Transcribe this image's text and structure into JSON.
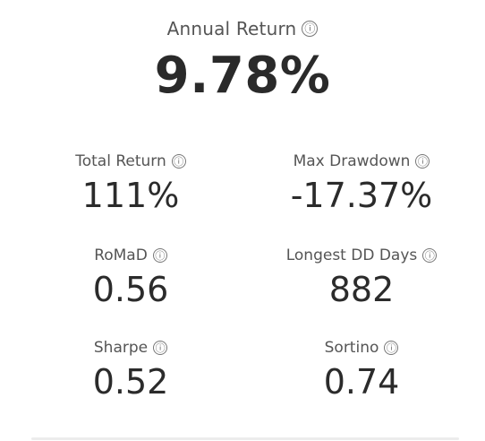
{
  "hero": {
    "label": "Annual Return",
    "value": "9.78%",
    "info_icon": "ⓘ"
  },
  "metrics": [
    {
      "label": "Total Return",
      "value": "111%",
      "info_icon": "ⓘ"
    },
    {
      "label": "Max Drawdown",
      "value": "-17.37%",
      "info_icon": "ⓘ"
    },
    {
      "label": "RoMaD",
      "value": "0.56",
      "info_icon": "ⓘ"
    },
    {
      "label": "Longest DD Days",
      "value": "882",
      "info_icon": "ⓘ"
    },
    {
      "label": "Sharpe",
      "value": "0.52",
      "info_icon": "ⓘ"
    },
    {
      "label": "Sortino",
      "value": "0.74",
      "info_icon": "ⓘ"
    }
  ]
}
